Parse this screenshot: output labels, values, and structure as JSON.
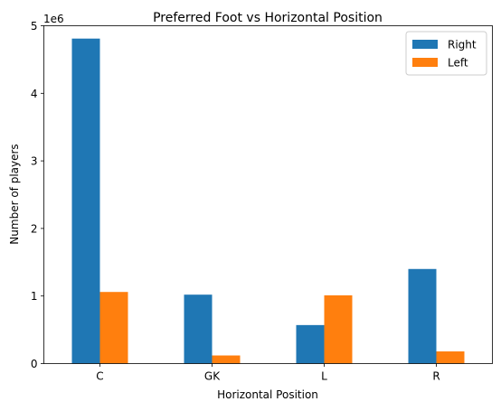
{
  "chart_data": {
    "type": "bar",
    "title": "Preferred Foot vs Horizontal Position",
    "xlabel": "Horizontal Position",
    "ylabel": "Number of players",
    "y_scale_label": "1e6",
    "y_multiplier": 1000000,
    "ylim": [
      0,
      5000000
    ],
    "yticks": [
      0,
      1000000,
      2000000,
      3000000,
      4000000,
      5000000
    ],
    "ytick_labels": [
      "0",
      "1",
      "2",
      "3",
      "4",
      "5"
    ],
    "categories": [
      "C",
      "GK",
      "L",
      "R"
    ],
    "series": [
      {
        "name": "Right",
        "color": "#1f77b4",
        "values": [
          4810000,
          1020000,
          570000,
          1400000
        ]
      },
      {
        "name": "Left",
        "color": "#ff7f0e",
        "values": [
          1060000,
          120000,
          1010000,
          180000
        ]
      }
    ],
    "legend_position": "top-right",
    "grid": false
  }
}
